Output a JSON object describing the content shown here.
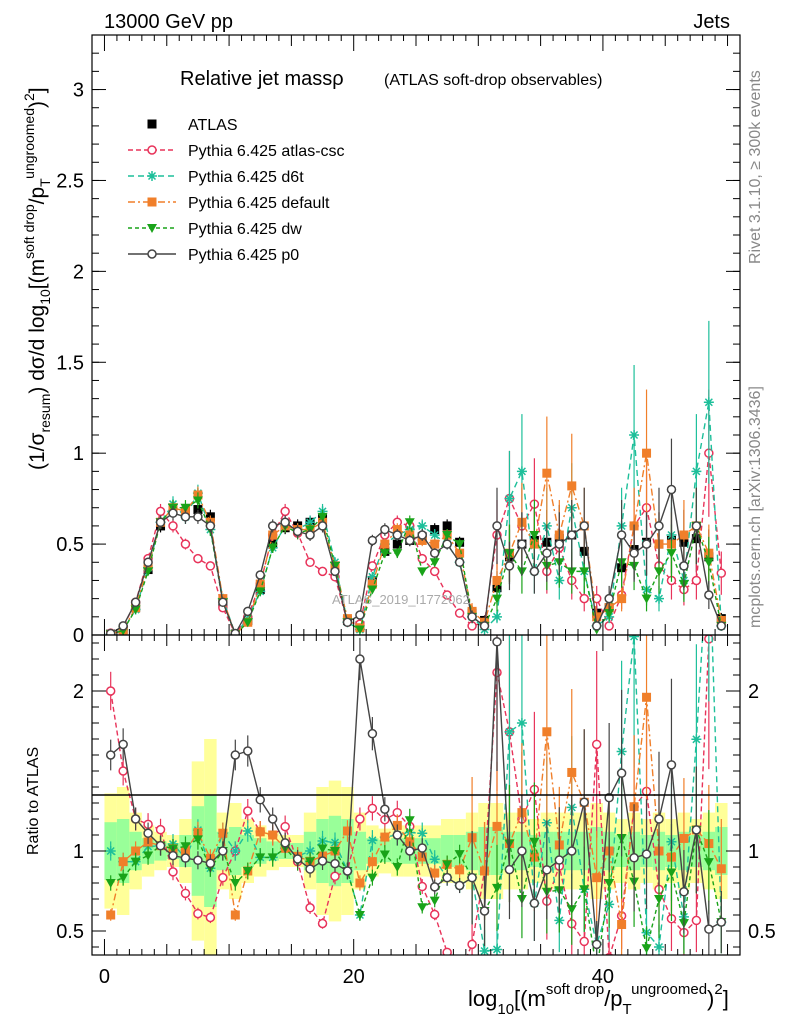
{
  "header": {
    "left": "13000 GeV pp",
    "right": "Jets",
    "side_top": "Rivet 3.1.10, ≥ 300k events",
    "side_bottom": "mcplots.cern.ch [arXiv:1306.3436]",
    "watermark": "ATLAS_2019_I1772062"
  },
  "chart_data": {
    "type": "line",
    "title": "Relative jet massρ",
    "subtitle": "(ATLAS soft-drop observables)",
    "xlabel": "log10[(m^soft drop/pT^ungroomed)^2]",
    "ylabel": "(1/σresum) dσ/d log10[(m^soft drop/pT^ungroomed)^2]",
    "ratio_ylabel": "Ratio to ATLAS",
    "xlim": [
      -1,
      51
    ],
    "ylim": [
      0,
      3.3
    ],
    "ratio_ylim": [
      0.35,
      2.35
    ],
    "xticks": [
      "0",
      "20",
      "40"
    ],
    "yticks": [
      "0",
      "0.5",
      "1",
      "1.5",
      "2",
      "2.5",
      "3"
    ],
    "ratio_yticks": [
      "0.5",
      "1",
      "2"
    ],
    "legend_position": "top-left",
    "x": [
      0.5,
      1.5,
      2.5,
      3.5,
      4.5,
      5.5,
      6.5,
      7.5,
      8.5,
      9.5,
      10.5,
      11.5,
      12.5,
      13.5,
      14.5,
      15.5,
      16.5,
      17.5,
      18.5,
      19.5,
      20.5,
      21.5,
      22.5,
      23.5,
      24.5,
      25.5,
      26.5,
      27.5,
      28.5,
      29.5,
      30.5,
      31.5,
      32.5,
      33.5,
      34.5,
      35.5,
      36.5,
      37.5,
      38.5,
      39.5,
      40.5,
      41.5,
      42.5,
      43.5,
      44.5,
      45.5,
      46.5,
      47.5,
      48.5,
      49.5
    ],
    "series": [
      {
        "name": "ATLAS",
        "color": "#000000",
        "values": [
          0.005,
          0.03,
          0.15,
          0.36,
          0.6,
          0.69,
          0.68,
          0.69,
          0.65,
          0.18,
          0.005,
          0.08,
          0.25,
          0.5,
          0.59,
          0.6,
          0.62,
          0.64,
          0.38,
          0.08,
          0.05,
          0.3,
          0.46,
          0.5,
          0.52,
          0.54,
          0.58,
          0.6,
          0.51,
          0.12,
          0.08,
          0.26,
          0.43,
          0.5,
          0.52,
          0.51,
          0.53,
          0.55,
          0.46,
          0.12,
          0.15,
          0.37,
          0.47,
          0.51,
          0.5,
          0.52,
          0.51,
          0.53,
          0.43,
          0.09
        ]
      },
      {
        "name": "Pythia 6.425 atlas-csc",
        "color": "#e8335a",
        "values": [
          0.01,
          0.045,
          0.18,
          0.42,
          0.68,
          0.6,
          0.5,
          0.42,
          0.38,
          0.15,
          0.005,
          0.1,
          0.28,
          0.55,
          0.68,
          0.56,
          0.4,
          0.35,
          0.32,
          0.07,
          0.06,
          0.38,
          0.55,
          0.62,
          0.6,
          0.42,
          0.35,
          0.22,
          0.12,
          0.05,
          0.07,
          0.55,
          0.75,
          0.6,
          0.72,
          0.35,
          0.48,
          0.3,
          0.2,
          0.2,
          0.05,
          0.22,
          0.6,
          0.7,
          0.38,
          0.3,
          0.25,
          0.3,
          1.0,
          0.34
        ]
      },
      {
        "name": "Pythia 6.425 d6t",
        "color": "#1dbf9a",
        "values": [
          0.005,
          0.028,
          0.14,
          0.37,
          0.62,
          0.72,
          0.65,
          0.78,
          0.58,
          0.2,
          0.005,
          0.09,
          0.24,
          0.48,
          0.6,
          0.58,
          0.62,
          0.68,
          0.4,
          0.07,
          0.03,
          0.32,
          0.5,
          0.55,
          0.58,
          0.6,
          0.55,
          0.5,
          0.4,
          0.1,
          0.03,
          0.1,
          0.75,
          0.9,
          0.35,
          0.6,
          0.3,
          0.7,
          0.35,
          0.05,
          0.1,
          0.6,
          1.1,
          0.25,
          0.2,
          0.55,
          0.3,
          0.9,
          1.28,
          0.05
        ]
      },
      {
        "name": "Pythia 6.425 default",
        "color": "#f07f2a",
        "values": [
          0.003,
          0.028,
          0.15,
          0.38,
          0.62,
          0.7,
          0.68,
          0.77,
          0.62,
          0.2,
          0.003,
          0.07,
          0.28,
          0.55,
          0.6,
          0.58,
          0.58,
          0.62,
          0.38,
          0.09,
          0.04,
          0.28,
          0.5,
          0.58,
          0.55,
          0.52,
          0.5,
          0.55,
          0.45,
          0.13,
          0.07,
          0.3,
          0.45,
          0.62,
          0.5,
          0.89,
          0.55,
          0.82,
          0.6,
          0.1,
          0.15,
          0.2,
          0.6,
          1.0,
          0.5,
          0.5,
          0.55,
          0.6,
          0.45,
          0.08
        ]
      },
      {
        "name": "Pythia 6.425 dw",
        "color": "#19a319",
        "values": [
          0.004,
          0.025,
          0.14,
          0.35,
          0.62,
          0.7,
          0.7,
          0.74,
          0.58,
          0.18,
          0.004,
          0.07,
          0.24,
          0.48,
          0.6,
          0.56,
          0.58,
          0.65,
          0.38,
          0.07,
          0.03,
          0.25,
          0.45,
          0.45,
          0.62,
          0.35,
          0.4,
          0.55,
          0.5,
          0.1,
          0.05,
          0.2,
          0.45,
          0.35,
          0.55,
          0.38,
          0.4,
          0.35,
          0.35,
          0.03,
          0.12,
          0.4,
          0.38,
          0.2,
          0.35,
          0.45,
          0.28,
          0.6,
          0.4,
          0.05
        ]
      },
      {
        "name": "Pythia 6.425 p0",
        "color": "#444444",
        "values": [
          0.008,
          0.05,
          0.18,
          0.4,
          0.62,
          0.67,
          0.65,
          0.65,
          0.6,
          0.18,
          0.008,
          0.13,
          0.33,
          0.6,
          0.62,
          0.57,
          0.55,
          0.6,
          0.35,
          0.07,
          0.11,
          0.52,
          0.58,
          0.55,
          0.52,
          0.55,
          0.45,
          0.5,
          0.4,
          0.1,
          0.05,
          0.6,
          0.38,
          0.5,
          0.35,
          0.45,
          0.5,
          0.55,
          0.6,
          0.05,
          0.2,
          0.55,
          0.45,
          0.5,
          0.6,
          0.8,
          0.38,
          0.6,
          0.22,
          0.05
        ]
      }
    ],
    "mc_uncertainty_rel": [
      0.18,
      0.2,
      0.12,
      0.08,
      0.06,
      0.05,
      0.1,
      0.28,
      0.35,
      0.12,
      0.15,
      0.1,
      0.08,
      0.06,
      0.05,
      0.05,
      0.12,
      0.2,
      0.22,
      0.2,
      0.12,
      0.08,
      0.07,
      0.08,
      0.08,
      0.08,
      0.08,
      0.1,
      0.1,
      0.12,
      0.15,
      0.15,
      0.12,
      0.12,
      0.1,
      0.12,
      0.12,
      0.12,
      0.12,
      0.15,
      0.12,
      0.1,
      0.12,
      0.1,
      0.12,
      0.1,
      0.12,
      0.1,
      0.12,
      0.15
    ]
  }
}
